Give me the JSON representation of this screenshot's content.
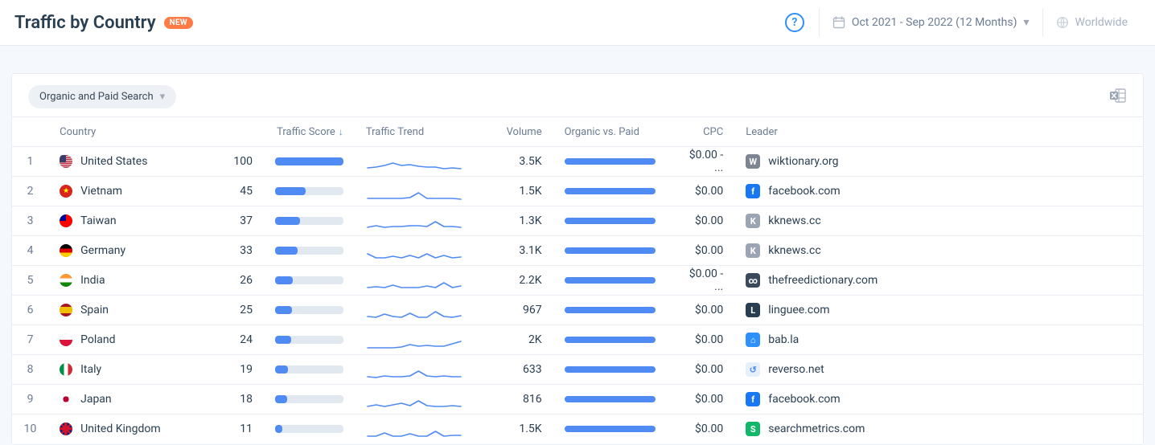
{
  "header": {
    "title": "Traffic by Country",
    "badge": "NEW",
    "date_range": "Oct 2021 - Sep 2022 (12 Months)",
    "region": "Worldwide"
  },
  "filter": {
    "label": "Organic and Paid Search"
  },
  "columns": {
    "country": "Country",
    "traffic_score": "Traffic Score",
    "traffic_trend": "Traffic Trend",
    "volume": "Volume",
    "organic_vs_paid": "Organic vs. Paid",
    "cpc": "CPC",
    "leader": "Leader"
  },
  "sort": {
    "column": "traffic_score",
    "dir": "desc"
  },
  "trend_style": {
    "stroke": "#4f8bf3",
    "width": 1.6
  },
  "rows": [
    {
      "rank": 1,
      "country": "United States",
      "flag": "us",
      "score": 100,
      "trend": [
        16,
        15,
        13,
        10,
        13,
        12,
        14,
        15,
        15,
        17,
        16,
        17
      ],
      "volume": "3.5K",
      "ovp": 100,
      "cpc": "$0.00 - ...",
      "leader": "wiktionary.org",
      "leader_icon_bg": "#7c8591",
      "leader_icon_text": "W"
    },
    {
      "rank": 2,
      "country": "Vietnam",
      "flag": "vn",
      "score": 45,
      "trend": [
        17,
        17,
        17,
        17,
        17,
        16,
        10,
        17,
        17,
        17,
        17,
        18
      ],
      "volume": "1.5K",
      "ovp": 100,
      "cpc": "$0.00",
      "leader": "facebook.com",
      "leader_icon_bg": "#1877f2",
      "leader_icon_text": "f"
    },
    {
      "rank": 3,
      "country": "Taiwan",
      "flag": "tw",
      "score": 37,
      "trend": [
        16,
        14,
        16,
        15,
        15,
        14,
        14,
        15,
        9,
        15,
        15,
        16
      ],
      "volume": "1.3K",
      "ovp": 100,
      "cpc": "$0.00",
      "leader": "kknews.cc",
      "leader_icon_bg": "#9aa4b2",
      "leader_icon_text": "K"
    },
    {
      "rank": 4,
      "country": "Germany",
      "flag": "de",
      "score": 33,
      "trend": [
        12,
        17,
        17,
        15,
        17,
        14,
        17,
        12,
        17,
        14,
        17,
        16
      ],
      "volume": "3.1K",
      "ovp": 100,
      "cpc": "$0.00",
      "leader": "kknews.cc",
      "leader_icon_bg": "#9aa4b2",
      "leader_icon_text": "K"
    },
    {
      "rank": 5,
      "country": "India",
      "flag": "in",
      "score": 26,
      "trend": [
        17,
        16,
        17,
        14,
        17,
        17,
        17,
        15,
        17,
        11,
        17,
        15
      ],
      "volume": "2.2K",
      "ovp": 100,
      "cpc": "$0.00 - ...",
      "leader": "thefreedictionary.com",
      "leader_icon_bg": "#3a4a5b",
      "leader_icon_text": "∞"
    },
    {
      "rank": 6,
      "country": "Spain",
      "flag": "es",
      "score": 25,
      "trend": [
        16,
        17,
        13,
        16,
        17,
        12,
        17,
        17,
        10,
        16,
        17,
        15
      ],
      "volume": "967",
      "ovp": 100,
      "cpc": "$0.00",
      "leader": "linguee.com",
      "leader_icon_bg": "#2a3e52",
      "leader_icon_text": "L"
    },
    {
      "rank": 7,
      "country": "Poland",
      "flag": "pl",
      "score": 24,
      "trend": [
        18,
        18,
        18,
        18,
        17,
        14,
        16,
        15,
        16,
        16,
        13,
        10
      ],
      "volume": "2K",
      "ovp": 100,
      "cpc": "$0.00",
      "leader": "bab.la",
      "leader_icon_bg": "#2e90fa",
      "leader_icon_text": "⌂"
    },
    {
      "rank": 8,
      "country": "Italy",
      "flag": "it",
      "score": 19,
      "trend": [
        17,
        18,
        16,
        17,
        17,
        16,
        10,
        16,
        17,
        16,
        17,
        17
      ],
      "volume": "633",
      "ovp": 100,
      "cpc": "$0.00",
      "leader": "reverso.net",
      "leader_icon_bg": "#e6f0fb",
      "leader_icon_text": "↺"
    },
    {
      "rank": 9,
      "country": "Japan",
      "flag": "jp",
      "score": 18,
      "trend": [
        17,
        15,
        17,
        15,
        13,
        16,
        10,
        16,
        17,
        17,
        16,
        17
      ],
      "volume": "816",
      "ovp": 100,
      "cpc": "$0.00",
      "leader": "facebook.com",
      "leader_icon_bg": "#1877f2",
      "leader_icon_text": "f"
    },
    {
      "rank": 10,
      "country": "United Kingdom",
      "flag": "gb",
      "score": 11,
      "trend": [
        17,
        17,
        13,
        17,
        17,
        14,
        17,
        17,
        11,
        17,
        16,
        16
      ],
      "volume": "1.5K",
      "ovp": 100,
      "cpc": "$0.00",
      "leader": "searchmetrics.com",
      "leader_icon_bg": "#12b76a",
      "leader_icon_text": "S"
    }
  ]
}
